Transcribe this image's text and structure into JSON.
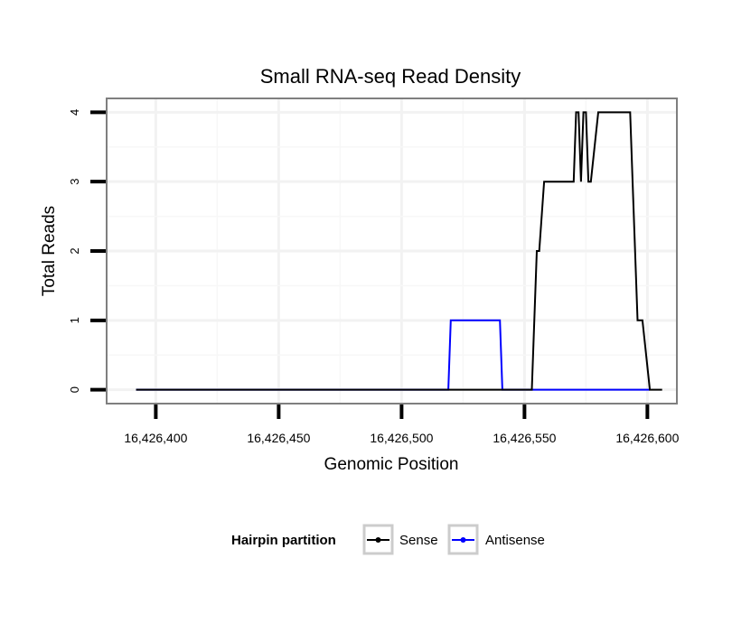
{
  "chart_data": {
    "type": "line",
    "title": "Small RNA-seq Read Density",
    "xlabel": "Genomic Position",
    "ylabel": "Total Reads",
    "xlim": [
      16426380,
      16426612
    ],
    "ylim": [
      -0.2,
      4.2
    ],
    "xticks": [
      16426400,
      16426450,
      16426500,
      16426550,
      16426600
    ],
    "xtick_labels": [
      "16,426,400",
      "16,426,450",
      "16,426,500",
      "16,426,550",
      "16,426,600"
    ],
    "yticks": [
      0,
      1,
      2,
      3,
      4
    ],
    "ytick_labels": [
      "0",
      "1",
      "2",
      "3",
      "4"
    ],
    "grid": true,
    "legend": {
      "title": "Hairpin partition",
      "position": "bottom",
      "entries": [
        "Sense",
        "Antisense"
      ]
    },
    "series": [
      {
        "name": "Sense",
        "color": "#000000",
        "x": [
          16426392,
          16426553,
          16426555,
          16426556,
          16426558,
          16426570,
          16426571,
          16426572,
          16426573,
          16426574,
          16426575,
          16426576,
          16426577,
          16426580,
          16426593,
          16426594,
          16426596,
          16426598,
          16426601,
          16426606
        ],
        "y": [
          0,
          0,
          2,
          2,
          3,
          3,
          4,
          4,
          3,
          4,
          4,
          3,
          3,
          4,
          4,
          3,
          1,
          1,
          0,
          0
        ]
      },
      {
        "name": "Antisense",
        "color": "#0000ff",
        "x": [
          16426392,
          16426519,
          16426520,
          16426540,
          16426541,
          16426601
        ],
        "y": [
          0,
          0,
          1,
          1,
          0,
          0
        ]
      }
    ]
  }
}
